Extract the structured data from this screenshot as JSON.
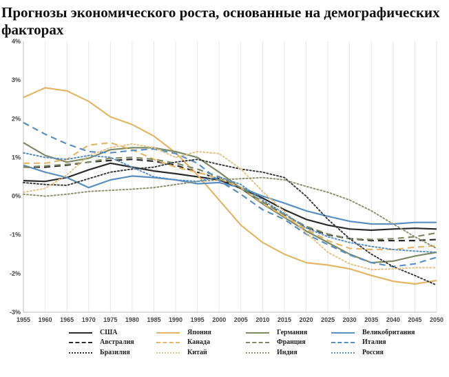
{
  "title": "Прогнозы экономического роста, основанные на демографических факторах",
  "chart_data": {
    "type": "line",
    "title": "Прогнозы экономического роста, основанные на демографических факторах",
    "xlabel": "",
    "ylabel": "",
    "x": [
      1955,
      1960,
      1965,
      1970,
      1975,
      1980,
      1985,
      1990,
      1995,
      2000,
      2005,
      2010,
      2015,
      2020,
      2025,
      2030,
      2035,
      2040,
      2045,
      2050
    ],
    "x_tick_labels": [
      "1955",
      "1960",
      "1965",
      "1970",
      "1975",
      "1980",
      "1985",
      "1990",
      "1995",
      "2000",
      "2005",
      "2010",
      "2015",
      "2020",
      "2025",
      "2030",
      "2035",
      "2040",
      "2045",
      "2050"
    ],
    "ylim": [
      -3,
      4
    ],
    "y_ticks": [
      -3,
      -2,
      -1,
      0,
      1,
      2,
      3,
      4
    ],
    "y_tick_labels": [
      "-3%",
      "-2%",
      "-1%",
      "0%",
      "1%",
      "2%",
      "3%",
      "4%"
    ],
    "grid": "vertical",
    "legend_position": "bottom",
    "series": [
      {
        "name": "США",
        "color": "#2b2b2b",
        "dash": "solid",
        "values": [
          0.4,
          0.38,
          0.48,
          0.68,
          0.85,
          0.75,
          0.65,
          0.58,
          0.5,
          0.42,
          0.2,
          -0.05,
          -0.35,
          -0.6,
          -0.75,
          -0.85,
          -0.88,
          -0.85,
          -0.83,
          -0.85
        ]
      },
      {
        "name": "Япония",
        "color": "#e3b767",
        "dash": "solid",
        "values": [
          2.55,
          2.8,
          2.72,
          2.45,
          2.05,
          1.85,
          1.55,
          1.12,
          0.55,
          -0.1,
          -0.75,
          -1.2,
          -1.5,
          -1.72,
          -1.78,
          -1.88,
          -2.05,
          -2.2,
          -2.27,
          -2.18
        ]
      },
      {
        "name": "Германия",
        "color": "#7e8a66",
        "dash": "solid",
        "values": [
          1.38,
          1.05,
          0.88,
          0.98,
          1.2,
          1.25,
          1.25,
          1.15,
          1.0,
          0.62,
          0.2,
          -0.2,
          -0.55,
          -0.9,
          -1.2,
          -1.5,
          -1.72,
          -1.68,
          -1.55,
          -1.45
        ]
      },
      {
        "name": "Великобритания",
        "color": "#5b8fbf",
        "dash": "solid",
        "values": [
          0.8,
          0.62,
          0.48,
          0.22,
          0.42,
          0.52,
          0.48,
          0.42,
          0.32,
          0.35,
          0.22,
          0.0,
          -0.18,
          -0.38,
          -0.52,
          -0.65,
          -0.72,
          -0.72,
          -0.68,
          -0.68
        ]
      },
      {
        "name": "Австралия",
        "color": "#2b2b2b",
        "dash": "long",
        "values": [
          0.75,
          0.75,
          0.8,
          0.88,
          0.92,
          0.95,
          0.9,
          0.8,
          0.62,
          0.45,
          0.2,
          -0.15,
          -0.48,
          -0.8,
          -1.0,
          -1.1,
          -1.15,
          -1.15,
          -1.15,
          -1.12
        ]
      },
      {
        "name": "Канада",
        "color": "#e3b767",
        "dash": "long",
        "values": [
          0.85,
          0.85,
          0.95,
          1.32,
          1.38,
          1.2,
          0.95,
          0.75,
          0.62,
          0.45,
          0.22,
          -0.18,
          -0.52,
          -0.85,
          -1.15,
          -1.35,
          -1.38,
          -1.38,
          -1.32,
          -1.28
        ]
      },
      {
        "name": "Франция",
        "color": "#7e8a66",
        "dash": "long",
        "values": [
          0.75,
          0.78,
          0.82,
          0.88,
          0.98,
          1.0,
          0.95,
          0.85,
          0.7,
          0.5,
          0.22,
          -0.15,
          -0.48,
          -0.78,
          -0.98,
          -1.1,
          -1.12,
          -1.1,
          -1.05,
          -0.95
        ]
      },
      {
        "name": "Италия",
        "color": "#5b8fbf",
        "dash": "long",
        "values": [
          1.9,
          1.6,
          1.35,
          1.15,
          1.12,
          1.18,
          1.22,
          1.1,
          0.85,
          0.4,
          0.05,
          -0.35,
          -0.6,
          -0.98,
          -1.25,
          -1.52,
          -1.72,
          -1.82,
          -1.75,
          -1.58
        ]
      },
      {
        "name": "Бразилия",
        "color": "#3a3a3a",
        "dash": "dot",
        "values": [
          0.35,
          0.3,
          0.28,
          0.45,
          0.62,
          0.7,
          0.75,
          0.88,
          0.95,
          0.82,
          0.7,
          0.62,
          0.48,
          0.0,
          -0.6,
          -1.1,
          -1.5,
          -1.82,
          -2.05,
          -2.3
        ]
      },
      {
        "name": "Китай",
        "color": "#e3c489",
        "dash": "dot",
        "values": [
          0.1,
          0.2,
          0.55,
          1.05,
          1.25,
          1.35,
          1.25,
          1.0,
          1.15,
          1.1,
          0.7,
          0.12,
          -0.4,
          -0.95,
          -1.45,
          -1.75,
          -1.9,
          -1.88,
          -1.85,
          -1.85
        ]
      },
      {
        "name": "Индия",
        "color": "#8d9370",
        "dash": "dot",
        "values": [
          0.05,
          0.0,
          0.05,
          0.12,
          0.15,
          0.18,
          0.22,
          0.3,
          0.38,
          0.42,
          0.45,
          0.48,
          0.42,
          0.25,
          0.1,
          -0.1,
          -0.38,
          -0.72,
          -1.05,
          -1.35
        ]
      },
      {
        "name": "Россия",
        "color": "#5b8fbf",
        "dash": "dot",
        "values": [
          1.12,
          1.0,
          0.95,
          1.05,
          1.0,
          0.75,
          0.5,
          0.42,
          0.38,
          0.5,
          0.3,
          -0.1,
          -0.45,
          -0.82,
          -1.05,
          -1.2,
          -1.3,
          -1.38,
          -1.42,
          -1.45
        ]
      }
    ]
  }
}
